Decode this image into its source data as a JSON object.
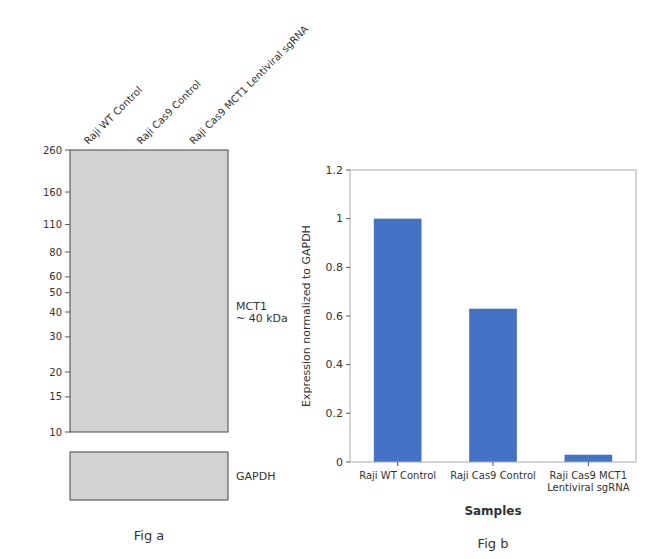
{
  "chart_data": [
    {
      "type": "blot",
      "title": "Fig a",
      "categories": [
        "Raji WT Control",
        "Raji Cas9 Control",
        "Raji Cas9 MCT1 Lentiviral sgRNA"
      ],
      "ylim": [
        10,
        260
      ],
      "yticks": [
        260,
        160,
        110,
        80,
        60,
        50,
        40,
        30,
        20,
        15,
        10
      ],
      "log": "y",
      "annotations": [
        "MCT1\n~ 40 kDa",
        "GAPDH"
      ]
    },
    {
      "type": "bar",
      "title": "Fig b",
      "categories": [
        "Raji WT Control",
        "Raji Cas9 Control",
        "Raji Cas9 MCT1\nLentiviral sgRNA"
      ],
      "values": [
        1.0,
        0.63,
        0.03
      ],
      "color": "#4472C4",
      "xlabel": "Samples",
      "ylabel": "Expression normalized to GAPDH",
      "ylim": [
        0,
        1.2
      ],
      "yticks": [
        0,
        0.2,
        0.4,
        0.6,
        0.8,
        1.0,
        1.2
      ],
      "grid": false
    }
  ]
}
